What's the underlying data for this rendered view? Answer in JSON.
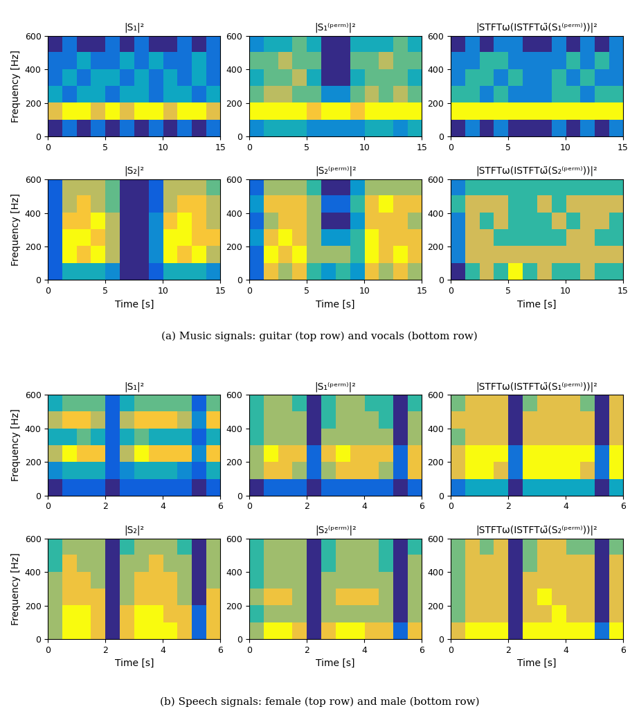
{
  "captions": [
    "(a) Music signals: guitar (top row) and vocals (bottom row)",
    "(b) Speech signals: female (top row) and male (bottom row)"
  ],
  "chart_data": [
    {
      "type": "heatmap",
      "title": "|S₁|²",
      "ylabel": "Frequency [Hz]",
      "xlim": [
        0,
        15
      ],
      "xticks": [
        0,
        5,
        10,
        15
      ],
      "ylim": [
        0,
        600
      ],
      "yticks": [
        0,
        200,
        400,
        600
      ],
      "cells": [
        [
          4,
          5,
          4,
          5,
          4,
          5,
          4,
          5,
          4,
          5,
          4,
          5
        ],
        [
          8,
          9,
          9,
          8,
          9,
          8,
          9,
          9,
          8,
          9,
          9,
          8
        ],
        [
          6,
          5,
          6,
          6,
          5,
          6,
          6,
          5,
          6,
          6,
          5,
          6
        ],
        [
          5,
          6,
          5,
          6,
          6,
          5,
          6,
          5,
          6,
          5,
          6,
          5
        ],
        [
          5,
          5,
          6,
          5,
          5,
          6,
          5,
          6,
          5,
          5,
          6,
          5
        ],
        [
          4,
          5,
          4,
          4,
          5,
          4,
          5,
          4,
          4,
          5,
          4,
          5
        ]
      ]
    },
    {
      "type": "heatmap",
      "title": "|S₁⁽ᵖᵉʳᵐ⁾|²",
      "xlim": [
        0,
        15
      ],
      "xticks": [
        0,
        5,
        10,
        15
      ],
      "ylim": [
        0,
        600
      ],
      "yticks": [
        0,
        200,
        400,
        600
      ],
      "cells": [
        [
          3,
          4,
          4,
          4,
          3,
          3,
          3,
          3,
          4,
          4,
          3,
          4
        ],
        [
          8,
          8,
          8,
          8,
          7,
          8,
          8,
          7,
          8,
          8,
          8,
          8
        ],
        [
          5,
          6,
          6,
          5,
          5,
          3,
          3,
          5,
          6,
          5,
          6,
          5
        ],
        [
          4,
          5,
          5,
          6,
          4,
          1,
          1,
          4,
          5,
          5,
          5,
          4
        ],
        [
          5,
          5,
          6,
          5,
          5,
          1,
          1,
          5,
          5,
          6,
          5,
          5
        ],
        [
          3,
          4,
          4,
          5,
          4,
          1,
          1,
          4,
          4,
          4,
          5,
          4
        ]
      ]
    },
    {
      "type": "heatmap",
      "title": "|STFTω(ISTFTω̃(S₁⁽ᵖᵉʳᵐ⁾))|²",
      "xlim": [
        0,
        15
      ],
      "xticks": [
        0,
        5,
        10,
        15
      ],
      "ylim": [
        0,
        600
      ],
      "yticks": [
        0,
        200,
        400,
        600
      ],
      "cells": [
        [
          4,
          5,
          4,
          5,
          4,
          4,
          4,
          5,
          4,
          5,
          4,
          5
        ],
        [
          8,
          8,
          8,
          8,
          8,
          8,
          8,
          8,
          8,
          8,
          8,
          8
        ],
        [
          6,
          6,
          5,
          6,
          5,
          5,
          5,
          6,
          6,
          5,
          6,
          6
        ],
        [
          5,
          6,
          6,
          5,
          6,
          5,
          5,
          6,
          5,
          6,
          5,
          5
        ],
        [
          5,
          5,
          6,
          6,
          5,
          5,
          5,
          5,
          6,
          5,
          6,
          5
        ],
        [
          4,
          5,
          4,
          5,
          5,
          4,
          4,
          5,
          4,
          5,
          4,
          5
        ]
      ]
    },
    {
      "type": "heatmap",
      "title": "|S₂|²",
      "ylabel": "Frequency [Hz]",
      "xlabel": "Time [s]",
      "xlim": [
        0,
        15
      ],
      "xticks": [
        0,
        5,
        10,
        15
      ],
      "ylim": [
        0,
        600
      ],
      "yticks": [
        0,
        200,
        400,
        600
      ],
      "cells": [
        [
          1,
          3,
          3,
          3,
          2,
          0,
          0,
          1,
          3,
          3,
          3,
          2
        ],
        [
          1,
          7,
          6,
          7,
          5,
          0,
          0,
          2,
          7,
          6,
          7,
          5
        ],
        [
          1,
          7,
          7,
          6,
          5,
          0,
          0,
          2,
          7,
          7,
          6,
          6
        ],
        [
          1,
          6,
          6,
          7,
          5,
          0,
          0,
          2,
          6,
          7,
          6,
          5
        ],
        [
          1,
          5,
          6,
          5,
          4,
          0,
          0,
          1,
          5,
          6,
          6,
          5
        ],
        [
          1,
          5,
          5,
          5,
          4,
          0,
          0,
          1,
          5,
          5,
          5,
          4
        ]
      ]
    },
    {
      "type": "heatmap",
      "title": "|S₂⁽ᵖᵉʳᵐ⁾|²",
      "xlabel": "Time [s]",
      "xlim": [
        0,
        15
      ],
      "xticks": [
        0,
        5,
        10,
        15
      ],
      "ylim": [
        0,
        600
      ],
      "yticks": [
        0,
        200,
        400,
        600
      ],
      "cells": [
        [
          2,
          6,
          5,
          6,
          4,
          3,
          4,
          3,
          6,
          5,
          6,
          5
        ],
        [
          2,
          7,
          6,
          7,
          5,
          5,
          5,
          4,
          7,
          6,
          7,
          6
        ],
        [
          3,
          6,
          7,
          6,
          5,
          3,
          3,
          4,
          7,
          6,
          6,
          6
        ],
        [
          2,
          5,
          6,
          6,
          5,
          1,
          1,
          3,
          6,
          6,
          6,
          5
        ],
        [
          3,
          6,
          6,
          6,
          5,
          2,
          2,
          4,
          6,
          7,
          6,
          6
        ],
        [
          2,
          5,
          5,
          5,
          4,
          1,
          1,
          3,
          5,
          5,
          5,
          5
        ]
      ]
    },
    {
      "type": "heatmap",
      "title": "|STFTω(ISTFTω̃(S₂⁽ᵖᵉʳᵐ⁾))|²",
      "xlabel": "Time [s]",
      "xlim": [
        0,
        15
      ],
      "xticks": [
        0,
        5,
        10,
        15
      ],
      "ylim": [
        0,
        600
      ],
      "yticks": [
        0,
        200,
        400,
        600
      ],
      "cells": [
        [
          3,
          5,
          6,
          5,
          7,
          5,
          6,
          5,
          5,
          6,
          5,
          5
        ],
        [
          4,
          6,
          6,
          6,
          6,
          6,
          6,
          6,
          6,
          6,
          6,
          6
        ],
        [
          4,
          6,
          6,
          5,
          5,
          5,
          5,
          5,
          6,
          6,
          5,
          5
        ],
        [
          4,
          6,
          5,
          6,
          5,
          5,
          5,
          6,
          5,
          6,
          6,
          5
        ],
        [
          5,
          6,
          6,
          6,
          5,
          5,
          6,
          5,
          6,
          6,
          6,
          6
        ],
        [
          4,
          5,
          5,
          5,
          5,
          5,
          5,
          5,
          5,
          5,
          5,
          5
        ]
      ]
    },
    {
      "type": "heatmap",
      "title": "|S₁|²",
      "ylabel": "Frequency [Hz]",
      "xlim": [
        0,
        6
      ],
      "xticks": [
        0,
        2,
        4,
        6
      ],
      "ylim": [
        0,
        600
      ],
      "yticks": [
        0,
        200,
        400,
        600
      ],
      "cells": [
        [
          0,
          1,
          1,
          1,
          0,
          1,
          1,
          1,
          1,
          1,
          0,
          1
        ],
        [
          2,
          3,
          3,
          3,
          1,
          2,
          3,
          3,
          3,
          2,
          1,
          3
        ],
        [
          5,
          7,
          6,
          6,
          1,
          5,
          7,
          6,
          6,
          6,
          2,
          6
        ],
        [
          3,
          3,
          4,
          3,
          1,
          3,
          4,
          3,
          3,
          3,
          1,
          3
        ],
        [
          5,
          6,
          6,
          5,
          1,
          5,
          6,
          6,
          6,
          5,
          2,
          6
        ],
        [
          3,
          4,
          4,
          4,
          1,
          3,
          4,
          4,
          4,
          4,
          1,
          4
        ]
      ]
    },
    {
      "type": "heatmap",
      "title": "|S₁⁽ᵖᵉʳᵐ⁾|²",
      "xlim": [
        0,
        6
      ],
      "xticks": [
        0,
        2,
        4,
        6
      ],
      "ylim": [
        0,
        600
      ],
      "yticks": [
        0,
        200,
        400,
        600
      ],
      "cells": [
        [
          1,
          2,
          2,
          2,
          1,
          2,
          2,
          2,
          2,
          2,
          1,
          2
        ],
        [
          5,
          6,
          6,
          5,
          2,
          5,
          6,
          6,
          6,
          5,
          2,
          6
        ],
        [
          5,
          7,
          6,
          6,
          2,
          6,
          7,
          6,
          6,
          6,
          2,
          6
        ],
        [
          4,
          5,
          5,
          5,
          1,
          5,
          5,
          5,
          5,
          5,
          1,
          5
        ],
        [
          4,
          5,
          5,
          5,
          1,
          4,
          5,
          5,
          5,
          4,
          1,
          5
        ],
        [
          4,
          5,
          5,
          4,
          1,
          4,
          5,
          5,
          4,
          4,
          1,
          4
        ]
      ]
    },
    {
      "type": "heatmap",
      "title": "|STFTω(ISTFTω̃(S₁⁽ᵖᵉʳᵐ⁾))|²",
      "xlim": [
        0,
        6
      ],
      "xticks": [
        0,
        2,
        4,
        6
      ],
      "ylim": [
        0,
        600
      ],
      "yticks": [
        0,
        200,
        400,
        600
      ],
      "cells": [
        [
          2,
          3,
          3,
          3,
          1,
          3,
          3,
          3,
          3,
          3,
          1,
          3
        ],
        [
          5,
          6,
          6,
          5,
          2,
          6,
          6,
          6,
          6,
          5,
          2,
          6
        ],
        [
          5,
          6,
          6,
          6,
          2,
          6,
          6,
          6,
          6,
          6,
          2,
          6
        ],
        [
          4,
          5,
          5,
          5,
          1,
          5,
          5,
          5,
          5,
          5,
          1,
          5
        ],
        [
          5,
          5,
          5,
          5,
          1,
          5,
          5,
          5,
          5,
          5,
          1,
          5
        ],
        [
          4,
          5,
          5,
          5,
          1,
          4,
          5,
          5,
          5,
          4,
          1,
          5
        ]
      ]
    },
    {
      "type": "heatmap",
      "title": "|S₂|²",
      "ylabel": "Frequency [Hz]",
      "xlabel": "Time [s]",
      "xlim": [
        0,
        6
      ],
      "xticks": [
        0,
        2,
        4,
        6
      ],
      "ylim": [
        0,
        600
      ],
      "yticks": [
        0,
        200,
        400,
        600
      ],
      "cells": [
        [
          5,
          7,
          7,
          6,
          1,
          6,
          7,
          7,
          7,
          6,
          2,
          6
        ],
        [
          5,
          7,
          7,
          6,
          1,
          6,
          7,
          7,
          6,
          6,
          2,
          6
        ],
        [
          5,
          6,
          6,
          6,
          1,
          5,
          6,
          6,
          6,
          5,
          1,
          6
        ],
        [
          5,
          6,
          6,
          5,
          1,
          5,
          6,
          6,
          6,
          5,
          1,
          5
        ],
        [
          4,
          6,
          5,
          5,
          1,
          5,
          5,
          6,
          5,
          5,
          1,
          5
        ],
        [
          4,
          5,
          5,
          5,
          1,
          4,
          5,
          5,
          5,
          4,
          1,
          5
        ]
      ]
    },
    {
      "type": "heatmap",
      "title": "|S₂⁽ᵖᵉʳᵐ⁾|²",
      "xlabel": "Time [s]",
      "xlim": [
        0,
        6
      ],
      "xticks": [
        0,
        2,
        4,
        6
      ],
      "ylim": [
        0,
        600
      ],
      "yticks": [
        0,
        200,
        400,
        600
      ],
      "cells": [
        [
          5,
          7,
          7,
          6,
          1,
          6,
          7,
          7,
          6,
          6,
          2,
          6
        ],
        [
          4,
          5,
          5,
          5,
          1,
          5,
          5,
          5,
          5,
          5,
          1,
          5
        ],
        [
          5,
          6,
          6,
          5,
          1,
          5,
          6,
          6,
          6,
          5,
          1,
          5
        ],
        [
          4,
          5,
          5,
          5,
          1,
          5,
          5,
          5,
          5,
          5,
          1,
          5
        ],
        [
          4,
          5,
          5,
          5,
          1,
          4,
          5,
          5,
          5,
          4,
          1,
          5
        ],
        [
          4,
          5,
          5,
          5,
          1,
          4,
          5,
          5,
          5,
          4,
          1,
          4
        ]
      ]
    },
    {
      "type": "heatmap",
      "title": "|STFTω(ISTFTω̃(S₂⁽ᵖᵉʳᵐ⁾))|²",
      "xlabel": "Time [s]",
      "xlim": [
        0,
        6
      ],
      "xticks": [
        0,
        2,
        4,
        6
      ],
      "ylim": [
        0,
        600
      ],
      "yticks": [
        0,
        200,
        400,
        600
      ],
      "cells": [
        [
          5,
          6,
          6,
          6,
          1,
          6,
          6,
          6,
          6,
          6,
          2,
          6
        ],
        [
          4,
          5,
          5,
          5,
          1,
          5,
          5,
          6,
          5,
          5,
          1,
          5
        ],
        [
          4,
          5,
          5,
          5,
          1,
          5,
          6,
          5,
          5,
          5,
          1,
          5
        ],
        [
          4,
          5,
          5,
          5,
          1,
          5,
          5,
          5,
          5,
          5,
          1,
          5
        ],
        [
          4,
          5,
          5,
          5,
          1,
          4,
          5,
          5,
          5,
          5,
          1,
          5
        ],
        [
          4,
          5,
          4,
          5,
          1,
          4,
          5,
          5,
          4,
          4,
          1,
          4
        ]
      ]
    }
  ]
}
